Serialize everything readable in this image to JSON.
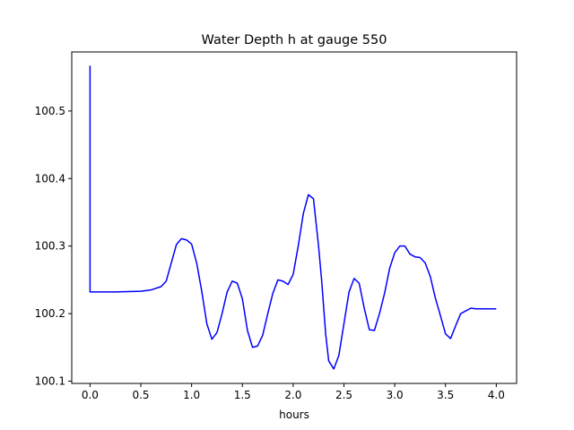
{
  "chart_data": {
    "type": "line",
    "title": "Water Depth h at gauge 550",
    "xlabel": "hours",
    "ylabel": "",
    "xlim": [
      -0.18,
      4.2
    ],
    "ylim": [
      100.0966,
      100.5874
    ],
    "xticks": [
      0.0,
      0.5,
      1.0,
      1.5,
      2.0,
      2.5,
      3.0,
      3.5,
      4.0
    ],
    "xtick_labels": [
      "0.0",
      "0.5",
      "1.0",
      "1.5",
      "2.0",
      "2.5",
      "3.0",
      "3.5",
      "4.0"
    ],
    "yticks": [
      100.1,
      100.2,
      100.3,
      100.4,
      100.5
    ],
    "ytick_labels": [
      "100.1",
      "100.2",
      "100.3",
      "100.4",
      "100.5"
    ],
    "grid": false,
    "series": [
      {
        "color": "#0000ff",
        "x": [
          0.0,
          0.0,
          0.0,
          0.25,
          0.5,
          0.6,
          0.7,
          0.75,
          0.8,
          0.85,
          0.9,
          0.95,
          1.0,
          1.05,
          1.1,
          1.15,
          1.2,
          1.25,
          1.3,
          1.35,
          1.4,
          1.45,
          1.5,
          1.55,
          1.6,
          1.65,
          1.7,
          1.75,
          1.8,
          1.85,
          1.9,
          1.95,
          2.0,
          2.05,
          2.1,
          2.15,
          2.2,
          2.25,
          2.28,
          2.32,
          2.35,
          2.4,
          2.45,
          2.5,
          2.55,
          2.6,
          2.65,
          2.7,
          2.75,
          2.8,
          2.85,
          2.9,
          2.95,
          3.0,
          3.05,
          3.1,
          3.15,
          3.2,
          3.25,
          3.3,
          3.35,
          3.4,
          3.45,
          3.5,
          3.55,
          3.6,
          3.65,
          3.7,
          3.75,
          3.8,
          3.85,
          3.9,
          3.95,
          4.0
        ],
        "y": [
          100.567,
          100.232,
          100.232,
          100.232,
          100.233,
          100.235,
          100.24,
          100.248,
          100.275,
          100.302,
          100.311,
          100.309,
          100.303,
          100.275,
          100.233,
          100.185,
          100.162,
          100.172,
          100.2,
          100.232,
          100.248,
          100.245,
          100.222,
          100.175,
          100.15,
          100.152,
          100.168,
          100.2,
          100.23,
          100.25,
          100.248,
          100.243,
          100.258,
          100.3,
          100.348,
          100.376,
          100.37,
          100.3,
          100.25,
          100.17,
          100.13,
          100.118,
          100.138,
          100.185,
          100.232,
          100.252,
          100.245,
          100.208,
          100.176,
          100.175,
          100.2,
          100.23,
          100.267,
          100.29,
          100.3,
          100.3,
          100.288,
          100.284,
          100.283,
          100.275,
          100.255,
          100.223,
          100.197,
          100.17,
          100.163,
          100.182,
          100.2,
          100.204,
          100.208,
          100.207,
          100.207,
          100.207,
          100.207,
          100.207
        ]
      }
    ]
  }
}
